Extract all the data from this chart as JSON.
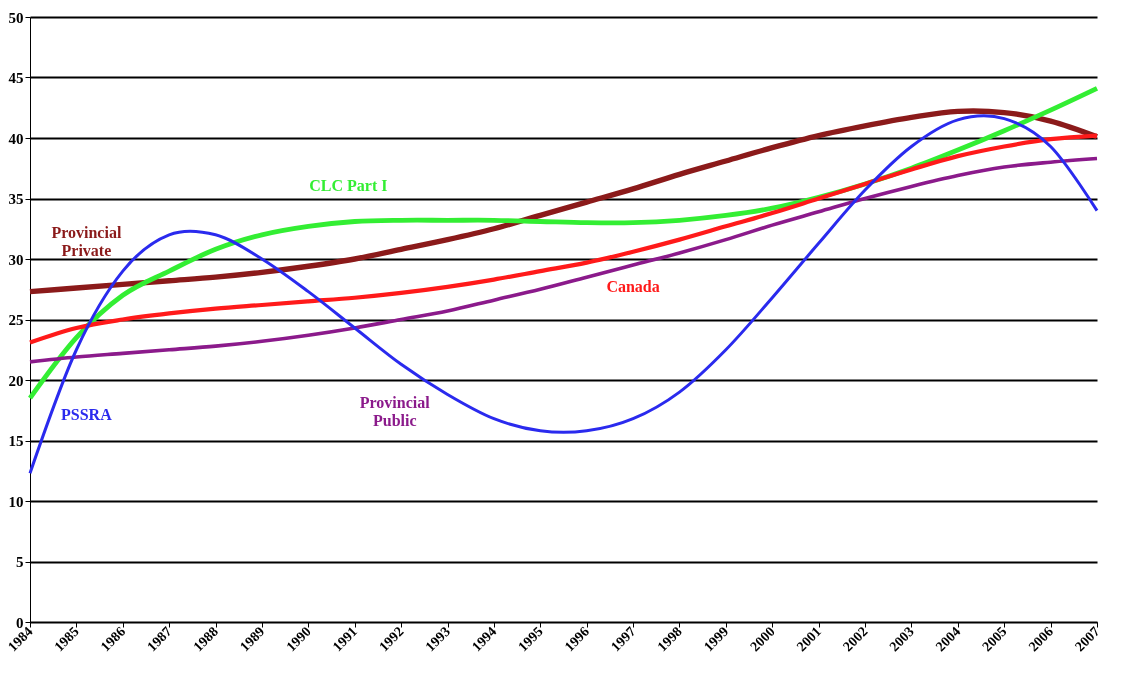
{
  "chart_data": {
    "type": "line",
    "x": [
      1984,
      1985,
      1986,
      1987,
      1988,
      1989,
      1990,
      1991,
      1992,
      1993,
      1994,
      1995,
      1996,
      1997,
      1998,
      1999,
      2000,
      2001,
      2002,
      2003,
      2004,
      2005,
      2006,
      2007
    ],
    "series": [
      {
        "name": "Provincial\nPrivate",
        "color": "#8b1a1a",
        "values": [
          27.3,
          27.6,
          27.9,
          28.2,
          28.5,
          28.9,
          29.4,
          30.0,
          30.8,
          31.6,
          32.5,
          33.6,
          34.7,
          35.8,
          37.0,
          38.1,
          39.2,
          40.2,
          41.0,
          41.7,
          42.2,
          42.1,
          41.4,
          40.1
        ]
      },
      {
        "name": "CLC Part I",
        "color": "#33ee33",
        "values": [
          18.5,
          23.5,
          27.0,
          29.0,
          30.8,
          32.0,
          32.7,
          33.1,
          33.2,
          33.2,
          33.2,
          33.1,
          33.0,
          33.0,
          33.2,
          33.6,
          34.2,
          35.1,
          36.2,
          37.5,
          39.0,
          40.6,
          42.3,
          44.1
        ]
      },
      {
        "name": "Canada",
        "color": "#ff1a1a",
        "values": [
          23.1,
          24.3,
          25.0,
          25.5,
          25.9,
          26.2,
          26.5,
          26.8,
          27.2,
          27.7,
          28.3,
          29.0,
          29.7,
          30.6,
          31.6,
          32.7,
          33.8,
          35.0,
          36.2,
          37.4,
          38.5,
          39.3,
          39.9,
          40.2
        ]
      },
      {
        "name": "Provincial\nPublic",
        "color": "#8b1a8b",
        "values": [
          21.5,
          21.9,
          22.2,
          22.5,
          22.8,
          23.2,
          23.7,
          24.3,
          25.0,
          25.7,
          26.6,
          27.5,
          28.5,
          29.5,
          30.5,
          31.6,
          32.8,
          33.9,
          35.0,
          36.0,
          36.9,
          37.6,
          38.0,
          38.3
        ]
      },
      {
        "name": "PSSRA",
        "color": "#2a2aee",
        "values": [
          12.3,
          22.5,
          29.0,
          32.0,
          32.0,
          30.0,
          27.3,
          24.3,
          21.3,
          18.8,
          16.8,
          15.8,
          15.8,
          16.8,
          19.0,
          22.5,
          26.8,
          31.3,
          35.7,
          39.3,
          41.5,
          41.6,
          39.3,
          34.0
        ]
      }
    ],
    "xlim": [
      1984,
      2007
    ],
    "xticks": [
      1984,
      1985,
      1986,
      1987,
      1988,
      1989,
      1990,
      1991,
      1992,
      1993,
      1994,
      1995,
      1996,
      1997,
      1998,
      1999,
      2000,
      2001,
      2002,
      2003,
      2004,
      2005,
      2006,
      2007
    ],
    "ylim": [
      0,
      50
    ],
    "yticks": [
      0,
      5,
      10,
      15,
      20,
      25,
      30,
      35,
      40,
      45,
      50
    ],
    "grid": "y",
    "legend": false,
    "marker": "none",
    "line_style": "solid"
  }
}
